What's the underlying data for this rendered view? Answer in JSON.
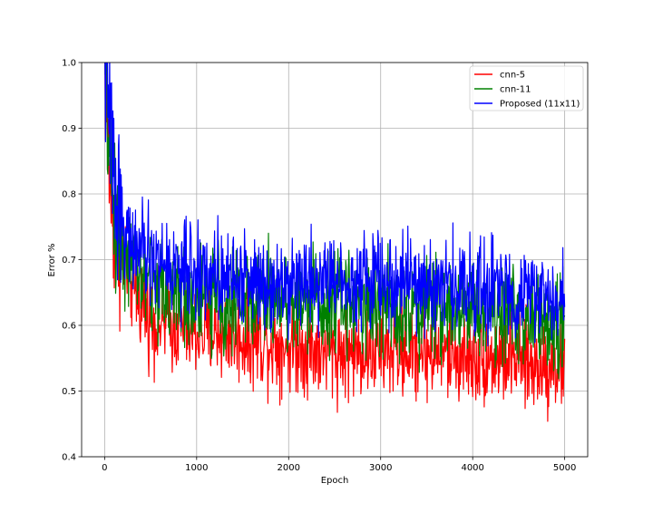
{
  "chart_data": {
    "type": "line",
    "title": "",
    "xlabel": "Epoch",
    "ylabel": "Error %",
    "xlim": [
      -250,
      5250
    ],
    "ylim": [
      0.4,
      1.0
    ],
    "x_ticks": [
      0,
      1000,
      2000,
      3000,
      4000,
      5000
    ],
    "x_tick_labels": [
      "0",
      "1000",
      "2000",
      "3000",
      "4000",
      "5000"
    ],
    "y_ticks": [
      0.4,
      0.5,
      0.6,
      0.7,
      0.8,
      0.9,
      1.0
    ],
    "y_tick_labels": [
      "0.4",
      "0.5",
      "0.6",
      "0.7",
      "0.8",
      "0.9",
      "1.0"
    ],
    "grid": true,
    "legend_position": "top-right",
    "series": [
      {
        "name": "cnn-5",
        "color": "#ff0000",
        "x": [
          0,
          50,
          100,
          200,
          300,
          500,
          700,
          1000,
          1300,
          1500,
          2000,
          2500,
          3000,
          3500,
          4000,
          4400,
          4600,
          4800,
          5000
        ],
        "y": [
          1.0,
          0.84,
          0.74,
          0.7,
          0.66,
          0.61,
          0.6,
          0.59,
          0.59,
          0.58,
          0.57,
          0.56,
          0.56,
          0.56,
          0.55,
          0.55,
          0.54,
          0.54,
          0.54
        ],
        "noise": 0.05
      },
      {
        "name": "cnn-11",
        "color": "#008000",
        "x": [
          0,
          50,
          100,
          200,
          300,
          500,
          700,
          1000,
          1300,
          1500,
          2000,
          2500,
          3000,
          3500,
          4000,
          4400,
          4600,
          4800,
          5000
        ],
        "y": [
          1.0,
          0.88,
          0.78,
          0.72,
          0.69,
          0.66,
          0.65,
          0.64,
          0.64,
          0.64,
          0.64,
          0.64,
          0.63,
          0.63,
          0.63,
          0.62,
          0.61,
          0.6,
          0.6
        ],
        "noise": 0.055
      },
      {
        "name": "Proposed (11x11)",
        "color": "#0000ff",
        "x": [
          0,
          50,
          100,
          200,
          300,
          500,
          700,
          1000,
          1300,
          1500,
          2000,
          2500,
          3000,
          3500,
          4000,
          4400,
          4600,
          4800,
          5000
        ],
        "y": [
          1.0,
          0.92,
          0.83,
          0.75,
          0.72,
          0.7,
          0.69,
          0.68,
          0.68,
          0.67,
          0.67,
          0.67,
          0.67,
          0.66,
          0.66,
          0.65,
          0.65,
          0.64,
          0.64
        ],
        "noise": 0.05
      }
    ]
  }
}
